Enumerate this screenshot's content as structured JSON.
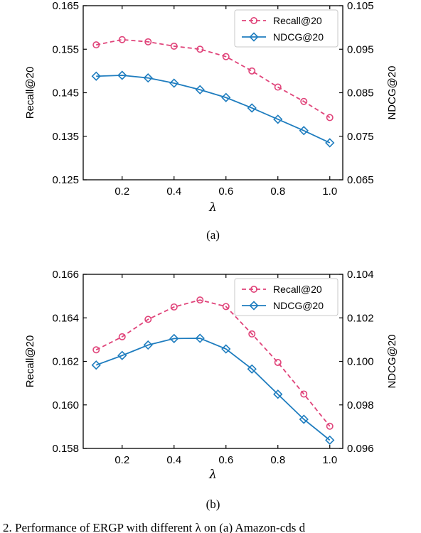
{
  "caption": {
    "text": "2.  Performance of ERGP with different λ on (a) Amazon-cds d"
  },
  "chart_data": [
    {
      "type": "line",
      "panel_label": "(a)",
      "xlabel": "λ",
      "ylabel_left": "Recall@20",
      "ylabel_right": "NDCG@20",
      "xlim": [
        0.05,
        1.05
      ],
      "xticks": [
        0.2,
        0.4,
        0.6,
        0.8,
        1.0
      ],
      "xtick_labels": [
        "0.2",
        "0.4",
        "0.6",
        "0.8",
        "1.0"
      ],
      "ylim_left": [
        0.125,
        0.165
      ],
      "yticks_left": [
        0.125,
        0.135,
        0.145,
        0.155,
        0.165
      ],
      "ytick_labels_left": [
        "0.125",
        "0.135",
        "0.145",
        "0.155",
        "0.165"
      ],
      "ylim_right": [
        0.065,
        0.105
      ],
      "yticks_right": [
        0.065,
        0.075,
        0.085,
        0.095,
        0.105
      ],
      "ytick_labels_right": [
        "0.065",
        "0.075",
        "0.085",
        "0.095",
        "0.105"
      ],
      "legend_position": "top-right",
      "x": [
        0.1,
        0.2,
        0.3,
        0.4,
        0.5,
        0.6,
        0.7,
        0.8,
        0.9,
        1.0
      ],
      "series": [
        {
          "name": "Recall@20",
          "axis": "left",
          "color": "#e0447a",
          "style": "dashed",
          "marker": "circle",
          "values": [
            0.156,
            0.1572,
            0.1567,
            0.1557,
            0.155,
            0.1533,
            0.15,
            0.1463,
            0.143,
            0.1393
          ]
        },
        {
          "name": "NDCG@20",
          "axis": "right",
          "color": "#1f7dbf",
          "style": "solid",
          "marker": "diamond",
          "values": [
            0.0888,
            0.089,
            0.0884,
            0.0872,
            0.0857,
            0.0839,
            0.0815,
            0.0789,
            0.0763,
            0.0735
          ]
        }
      ]
    },
    {
      "type": "line",
      "panel_label": "(b)",
      "xlabel": "λ",
      "ylabel_left": "Recall@20",
      "ylabel_right": "NDCG@20",
      "xlim": [
        0.05,
        1.05
      ],
      "xticks": [
        0.2,
        0.4,
        0.6,
        0.8,
        1.0
      ],
      "xtick_labels": [
        "0.2",
        "0.4",
        "0.6",
        "0.8",
        "1.0"
      ],
      "ylim_left": [
        0.158,
        0.166
      ],
      "yticks_left": [
        0.158,
        0.16,
        0.162,
        0.164,
        0.166
      ],
      "ytick_labels_left": [
        "0.158",
        "0.160",
        "0.162",
        "0.164",
        "0.166"
      ],
      "ylim_right": [
        0.096,
        0.104
      ],
      "yticks_right": [
        0.096,
        0.098,
        0.1,
        0.102,
        0.104
      ],
      "ytick_labels_right": [
        "0.096",
        "0.098",
        "0.100",
        "0.102",
        "0.104"
      ],
      "legend_position": "top-right",
      "x": [
        0.1,
        0.2,
        0.3,
        0.4,
        0.5,
        0.6,
        0.7,
        0.8,
        0.9,
        1.0
      ],
      "series": [
        {
          "name": "Recall@20",
          "axis": "left",
          "color": "#e0447a",
          "style": "dashed",
          "marker": "circle",
          "values": [
            0.16253,
            0.16313,
            0.16393,
            0.1645,
            0.16482,
            0.16452,
            0.16326,
            0.16195,
            0.1605,
            0.15902
          ]
        },
        {
          "name": "NDCG@20",
          "axis": "right",
          "color": "#1f7dbf",
          "style": "solid",
          "marker": "diamond",
          "values": [
            0.09983,
            0.10027,
            0.10075,
            0.10105,
            0.10106,
            0.10057,
            0.09965,
            0.09849,
            0.09734,
            0.09638
          ]
        }
      ]
    }
  ]
}
